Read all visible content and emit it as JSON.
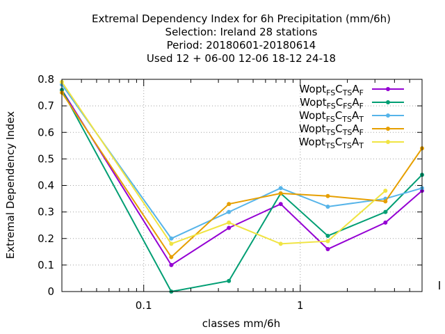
{
  "chart_data": {
    "type": "line",
    "title_lines": [
      "Extremal Dependency Index  for 6h Precipitation (mm/6h)",
      "Selection: Ireland     28 stations",
      "Period: 20180601-20180614",
      "Used  12 + 06-00 12-06 18-12 24-18"
    ],
    "xlabel": "classes mm/6h",
    "ylabel": "Extremal Dependency Index",
    "xscale": "log",
    "xlim": [
      0.03,
      6.0
    ],
    "ylim": [
      0,
      0.8
    ],
    "xticks": [
      {
        "value": 0.1,
        "label": "0.1"
      },
      {
        "value": 1,
        "label": "1"
      }
    ],
    "yticks": [
      {
        "value": 0,
        "label": "0"
      },
      {
        "value": 0.1,
        "label": "0.1"
      },
      {
        "value": 0.2,
        "label": "0.2"
      },
      {
        "value": 0.3,
        "label": "0.3"
      },
      {
        "value": 0.4,
        "label": "0.4"
      },
      {
        "value": 0.5,
        "label": "0.5"
      },
      {
        "value": 0.6,
        "label": "0.6"
      },
      {
        "value": 0.7,
        "label": "0.7"
      },
      {
        "value": 0.8,
        "label": "0.8"
      }
    ],
    "grid": true,
    "legend_position": "top-right",
    "x": [
      0.03,
      0.15,
      0.35,
      0.75,
      1.5,
      3.5,
      6.0
    ],
    "series": [
      {
        "label_main": "Wopt",
        "label_parts": [
          [
            "FS",
            "C"
          ],
          [
            "TS",
            "A"
          ],
          [
            "F",
            ""
          ]
        ],
        "color": "#9400d3",
        "values": [
          0.76,
          0.1,
          0.24,
          0.33,
          0.16,
          0.26,
          0.38
        ]
      },
      {
        "label_main": "Wopt",
        "label_parts": [
          [
            "FS",
            "C"
          ],
          [
            "FS",
            "A"
          ],
          [
            "F",
            ""
          ]
        ],
        "color": "#009e73",
        "values": [
          0.76,
          0.0,
          0.04,
          0.37,
          0.21,
          0.3,
          0.44
        ]
      },
      {
        "label_main": "Wopt",
        "label_parts": [
          [
            "FS",
            "C"
          ],
          [
            "TS",
            "A"
          ],
          [
            "T",
            ""
          ]
        ],
        "color": "#56b4e9",
        "values": [
          0.78,
          0.2,
          0.3,
          0.39,
          0.32,
          0.35,
          0.39
        ]
      },
      {
        "label_main": "Wopt",
        "label_parts": [
          [
            "TS",
            "C"
          ],
          [
            "TS",
            "A"
          ],
          [
            "F",
            ""
          ]
        ],
        "color": "#e69f00",
        "values": [
          0.75,
          0.13,
          0.33,
          0.37,
          0.36,
          0.34,
          0.54
        ]
      },
      {
        "label_main": "Wopt",
        "label_parts": [
          [
            "TS",
            "C"
          ],
          [
            "TS",
            "A"
          ],
          [
            "T",
            ""
          ]
        ],
        "color": "#f0e442",
        "values": [
          0.79,
          0.18,
          0.26,
          0.18,
          0.19,
          0.38,
          null
        ]
      }
    ]
  }
}
